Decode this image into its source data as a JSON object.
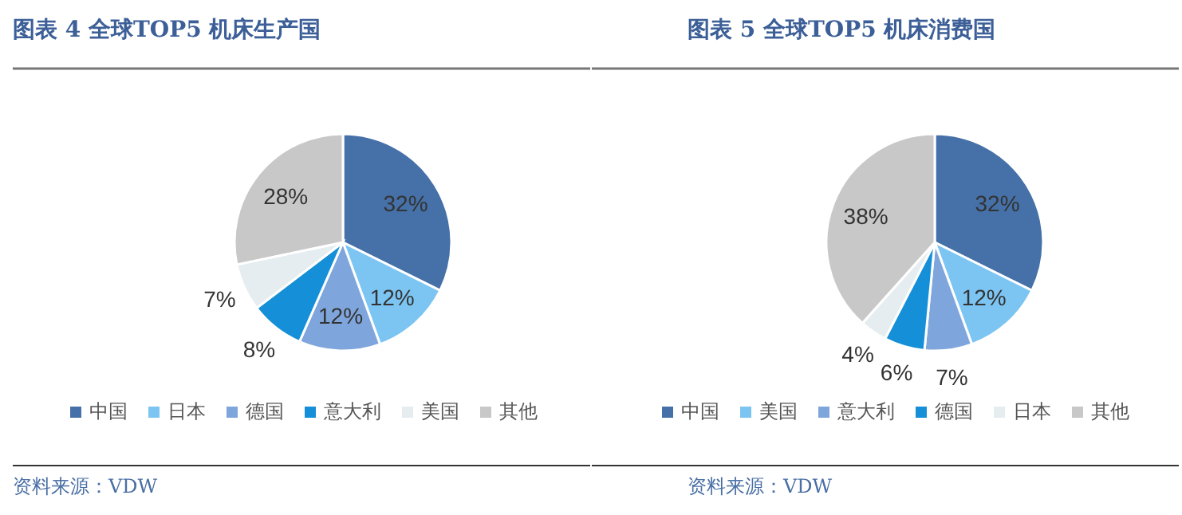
{
  "chart_data": [
    {
      "type": "pie",
      "title": "图表 4 全球TOP5 机床生产国",
      "categories": [
        "中国",
        "日本",
        "德国",
        "意大利",
        "美国",
        "其他"
      ],
      "values": [
        32,
        12,
        12,
        8,
        7,
        28
      ],
      "value_labels": [
        "32%",
        "12%",
        "12%",
        "8%",
        "7%",
        "28%"
      ],
      "colors": [
        "#4571a8",
        "#7cc5f3",
        "#7fa6dc",
        "#1590d8",
        "#e5edf1",
        "#c8c8c8"
      ],
      "legend": "bottom",
      "annotations": [
        "资料来源：VDW"
      ]
    },
    {
      "type": "pie",
      "title": "图表 5 全球TOP5 机床消费国",
      "categories": [
        "中国",
        "美国",
        "意大利",
        "德国",
        "日本",
        "其他"
      ],
      "values": [
        32,
        12,
        7,
        6,
        4,
        38
      ],
      "value_labels": [
        "32%",
        "12%",
        "7%",
        "6%",
        "4%",
        "38%"
      ],
      "colors": [
        "#4571a8",
        "#7cc5f3",
        "#7fa6dc",
        "#1590d8",
        "#e5edf1",
        "#c8c8c8"
      ],
      "legend": "bottom",
      "annotations": [
        "资料来源：VDW"
      ]
    }
  ]
}
